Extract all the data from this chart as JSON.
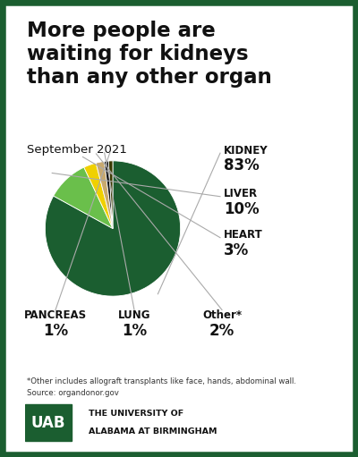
{
  "title": "More people are\nwaiting for kidneys\nthan any other organ",
  "subtitle": "September 2021",
  "background_color": "#ffffff",
  "border_color": "#1b5e30",
  "slices": [
    {
      "label": "KIDNEY",
      "value": 83,
      "color": "#1b5e30",
      "pct": "83%"
    },
    {
      "label": "LIVER",
      "value": 10,
      "color": "#6abf4b",
      "pct": "10%"
    },
    {
      "label": "HEART",
      "value": 3,
      "color": "#f0d000",
      "pct": "3%"
    },
    {
      "label": "Other*",
      "value": 2,
      "color": "#c8a96e",
      "pct": "2%"
    },
    {
      "label": "LUNG",
      "value": 1,
      "color": "#111111",
      "pct": "1%"
    },
    {
      "label": "PANCREAS",
      "value": 1,
      "color": "#3a3a00",
      "pct": "1%"
    }
  ],
  "footnote": "*Other includes allograft transplants like face, hands, abdominal wall.",
  "source": "Source: organdonor.gov",
  "right_labels": [
    {
      "label": "KIDNEY",
      "pct": "83%",
      "slice_idx": 0
    },
    {
      "label": "LIVER",
      "pct": "10%",
      "slice_idx": 1
    },
    {
      "label": "HEART",
      "pct": "3%",
      "slice_idx": 2
    }
  ],
  "bottom_labels": [
    {
      "label": "PANCREAS",
      "pct": "1%",
      "slice_idx": 5
    },
    {
      "label": "LUNG",
      "pct": "1%",
      "slice_idx": 4
    },
    {
      "label": "Other*",
      "pct": "2%",
      "slice_idx": 3
    }
  ],
  "uab_color": "#1b5e30"
}
